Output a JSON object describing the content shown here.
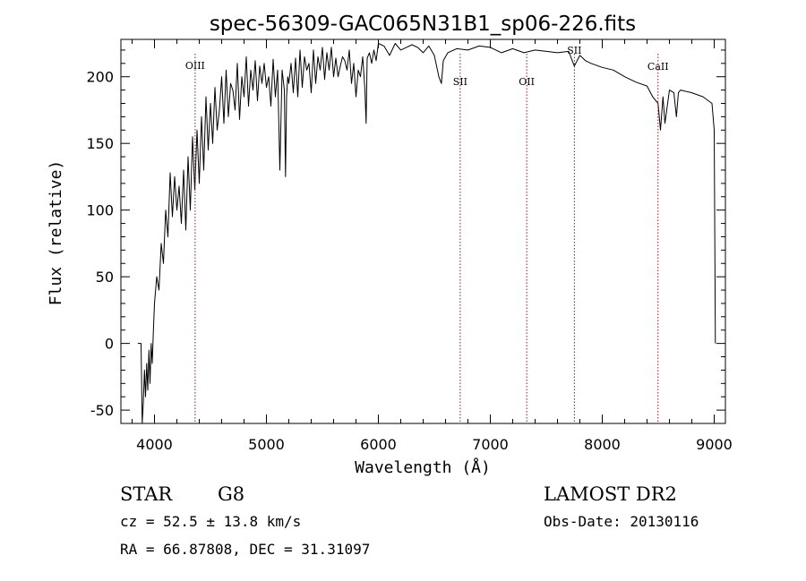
{
  "chart_data": {
    "type": "line",
    "title": "spec-56309-GAC065N31B1_sp06-226.fits",
    "xlabel": "Wavelength (Å)",
    "ylabel": "Flux (relative)",
    "xlim": [
      3700,
      9100
    ],
    "ylim": [
      -60,
      228
    ],
    "xticks": [
      4000,
      5000,
      6000,
      7000,
      8000,
      9000
    ],
    "yticks": [
      -50,
      0,
      50,
      100,
      150,
      200
    ],
    "grid": false,
    "series": [
      {
        "x": [
          3850,
          3880,
          3890,
          3900,
          3910,
          3920,
          3930,
          3940,
          3950,
          3960,
          3970,
          3980,
          3990,
          4000,
          4020,
          4040,
          4060,
          4080,
          4100,
          4120,
          4140,
          4160,
          4180,
          4200,
          4220,
          4240,
          4260,
          4280,
          4300,
          4320,
          4340,
          4360,
          4380,
          4400,
          4420,
          4440,
          4460,
          4480,
          4500,
          4520,
          4540,
          4560,
          4580,
          4600,
          4620,
          4640,
          4660,
          4680,
          4700,
          4720,
          4740,
          4760,
          4780,
          4800,
          4820,
          4840,
          4860,
          4880,
          4900,
          4920,
          4940,
          4960,
          4980,
          5000,
          5020,
          5040,
          5060,
          5080,
          5100,
          5120,
          5140,
          5160,
          5170,
          5180,
          5190,
          5200,
          5220,
          5240,
          5260,
          5280,
          5300,
          5320,
          5340,
          5360,
          5380,
          5400,
          5420,
          5440,
          5460,
          5480,
          5500,
          5520,
          5540,
          5560,
          5580,
          5600,
          5620,
          5640,
          5660,
          5680,
          5700,
          5720,
          5740,
          5760,
          5780,
          5800,
          5820,
          5840,
          5860,
          5880,
          5890,
          5900,
          5920,
          5940,
          5960,
          5980,
          6000,
          6050,
          6100,
          6150,
          6200,
          6250,
          6300,
          6350,
          6400,
          6450,
          6500,
          6540,
          6563,
          6580,
          6620,
          6700,
          6800,
          6900,
          7000,
          7100,
          7200,
          7300,
          7400,
          7500,
          7600,
          7700,
          7750,
          7800,
          7850,
          7900,
          8000,
          8100,
          8200,
          8300,
          8400,
          8450,
          8498,
          8520,
          8542,
          8560,
          8600,
          8640,
          8662,
          8680,
          8700,
          8800,
          8900,
          8980,
          9000,
          9010
        ],
        "y": [
          0,
          0,
          -60,
          -45,
          -20,
          -40,
          -15,
          -35,
          -5,
          -30,
          0,
          -15,
          10,
          30,
          50,
          40,
          75,
          60,
          100,
          80,
          128,
          95,
          125,
          100,
          118,
          90,
          130,
          85,
          140,
          100,
          155,
          115,
          160,
          120,
          170,
          130,
          185,
          145,
          180,
          150,
          192,
          160,
          175,
          200,
          165,
          205,
          170,
          195,
          190,
          175,
          210,
          168,
          200,
          185,
          215,
          178,
          205,
          190,
          212,
          182,
          208,
          195,
          210,
          192,
          200,
          178,
          213,
          185,
          205,
          130,
          205,
          190,
          125,
          185,
          200,
          195,
          210,
          188,
          214,
          185,
          220,
          192,
          215,
          205,
          210,
          188,
          220,
          195,
          215,
          205,
          222,
          198,
          218,
          205,
          222,
          200,
          214,
          200,
          208,
          215,
          212,
          205,
          220,
          195,
          210,
          185,
          205,
          200,
          215,
          190,
          165,
          214,
          218,
          210,
          220,
          212,
          225,
          223,
          216,
          225,
          220,
          222,
          224,
          222,
          218,
          223,
          216,
          200,
          195,
          212,
          218,
          221,
          220,
          223,
          222,
          218,
          221,
          218,
          220,
          219,
          218,
          219,
          208,
          216,
          212,
          210,
          207,
          205,
          200,
          196,
          193,
          185,
          180,
          160,
          185,
          165,
          190,
          188,
          170,
          188,
          190,
          188,
          185,
          180,
          160,
          0
        ]
      }
    ],
    "lines": [
      {
        "label": "OIII",
        "x": 4363
      },
      {
        "label": "SII",
        "x": 6731
      },
      {
        "label": "OII",
        "x": 7325
      },
      {
        "label": "SII",
        "x": 7751
      },
      {
        "label": "CaII",
        "x": 8498
      }
    ]
  },
  "info": {
    "object": "STAR",
    "subclass": "G8",
    "survey": "LAMOST DR2",
    "cz": "cz = 52.5 ± 13.8 km/s",
    "obsdate": "Obs-Date: 20130116",
    "coords": "RA =  66.87808, DEC =  31.31097"
  }
}
